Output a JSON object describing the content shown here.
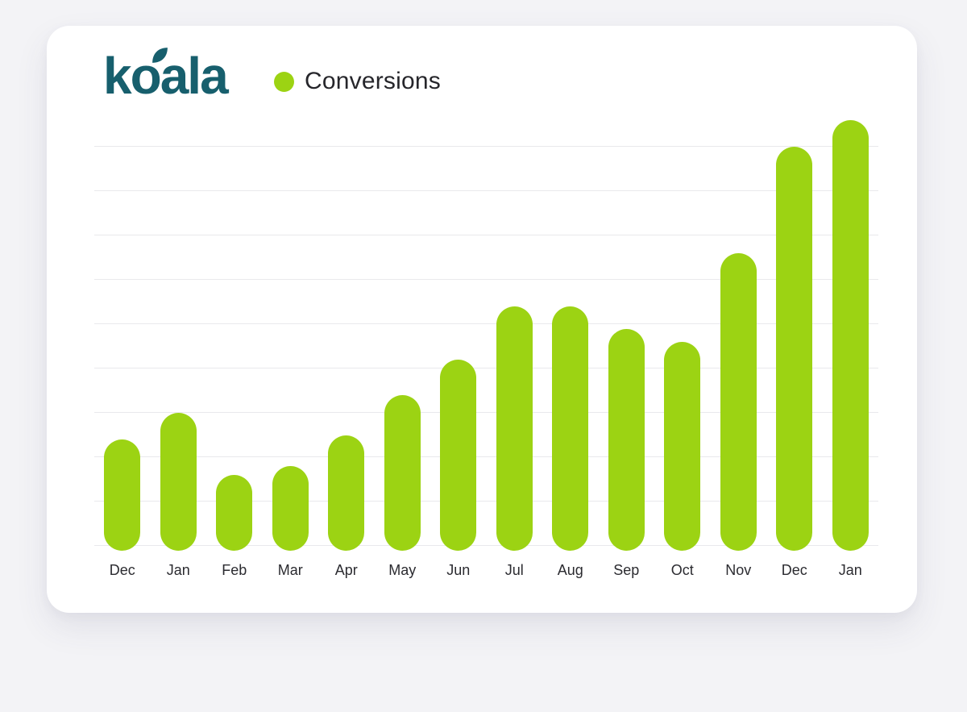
{
  "header": {
    "logo_text": "koala",
    "legend": {
      "label": "Conversions"
    }
  },
  "chart_data": {
    "type": "bar",
    "title": "",
    "xlabel": "",
    "ylabel": "",
    "series_name": "Conversions",
    "categories": [
      "Dec",
      "Jan",
      "Feb",
      "Mar",
      "Apr",
      "May",
      "Jun",
      "Jul",
      "Aug",
      "Sep",
      "Oct",
      "Nov",
      "Dec",
      "Jan"
    ],
    "values": [
      24,
      30,
      16,
      18,
      25,
      34,
      42,
      54,
      54,
      49,
      46,
      66,
      90,
      96
    ],
    "ylim": [
      0,
      100
    ],
    "y_axis_labels_visible": false,
    "gridline_count": 10,
    "grid_interval": 10,
    "legend_position": "top-left",
    "bar_shape": "rounded-pill"
  },
  "colors": {
    "accent_green": "#9CD313",
    "brand_teal": "#175F6D",
    "text_dark": "#26262B",
    "label_gray": "#2B2B30",
    "grid": "#E9E9EC",
    "card_bg": "#FFFFFF",
    "page_bg": "#F3F3F6"
  }
}
